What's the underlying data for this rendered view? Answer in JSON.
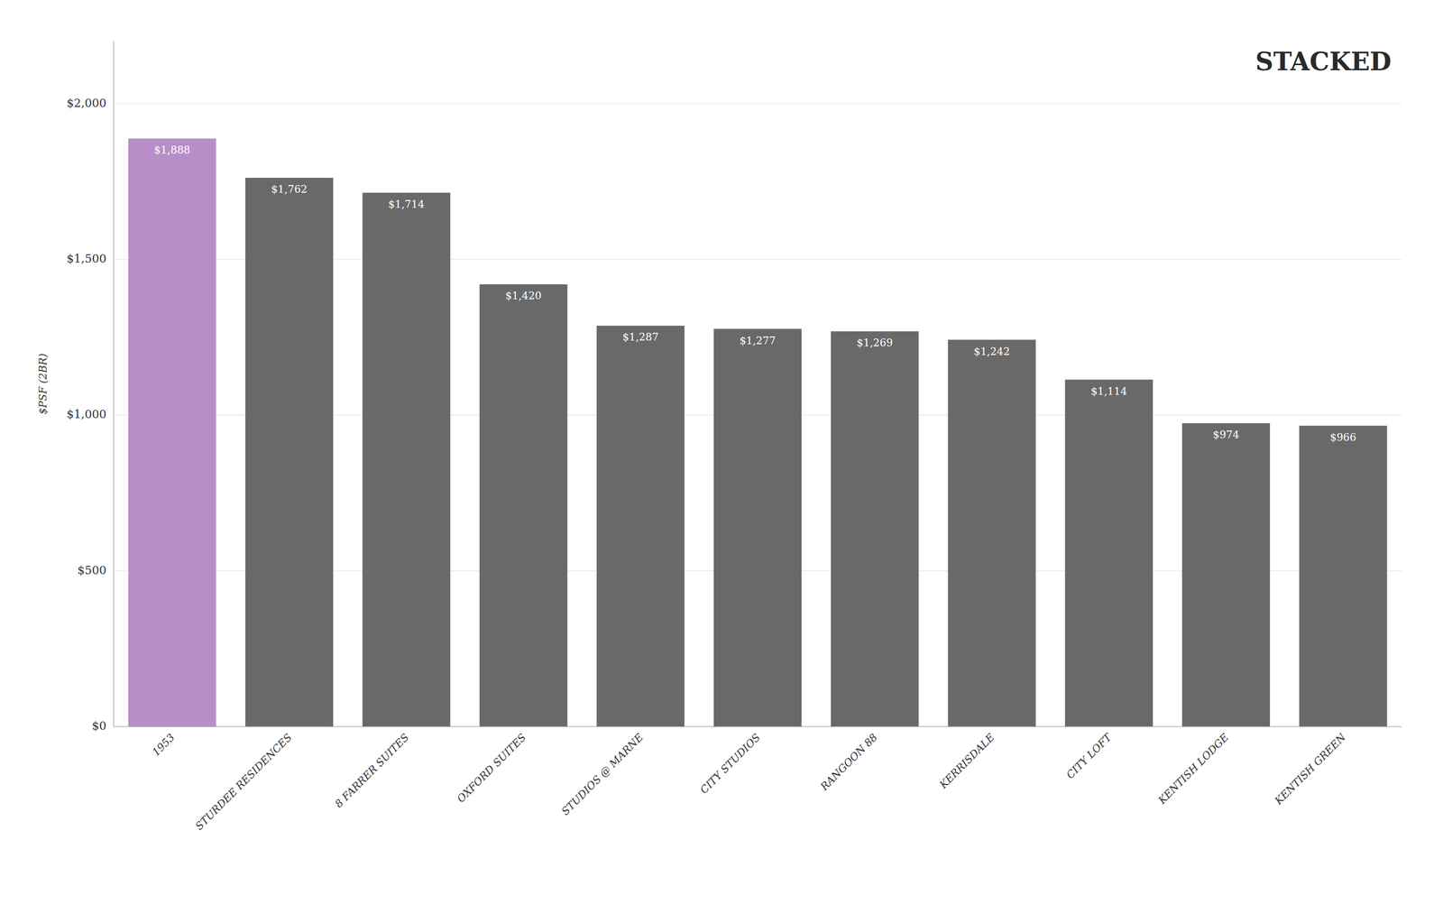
{
  "chart_data": {
    "type": "bar",
    "categories": [
      "1953",
      "STURDEE RESIDENCES",
      "8 FARRER SUITES",
      "OXFORD SUITES",
      "STUDIOS @ MARNE",
      "CITY STUDIOS",
      "RANGOON 88",
      "KERRISDALE",
      "CITY LOFT",
      "KENTISH LODGE",
      "KENTISH GREEN"
    ],
    "values": [
      1888,
      1762,
      1714,
      1420,
      1287,
      1277,
      1269,
      1242,
      1114,
      974,
      966
    ],
    "value_labels": [
      "$1,888",
      "$1,762",
      "$1,714",
      "$1,420",
      "$1,287",
      "$1,277",
      "$1,269",
      "$1,242",
      "$1,114",
      "$974",
      "$966"
    ],
    "colors": [
      "#b88ec8",
      "#696969",
      "#696969",
      "#696969",
      "#696969",
      "#696969",
      "#696969",
      "#696969",
      "#696969",
      "#696969",
      "#696969"
    ],
    "ylabel": "$PSF (2BR)",
    "ylim": [
      0,
      2200
    ],
    "yticks": [
      {
        "value": 0,
        "label": "$0"
      },
      {
        "value": 500,
        "label": "$500"
      },
      {
        "value": 1000,
        "label": "$1,000"
      },
      {
        "value": 1500,
        "label": "$1,500"
      },
      {
        "value": 2000,
        "label": "$2,000"
      }
    ],
    "grid": true,
    "data_labels": true,
    "annotations": [
      "STACKED"
    ]
  }
}
